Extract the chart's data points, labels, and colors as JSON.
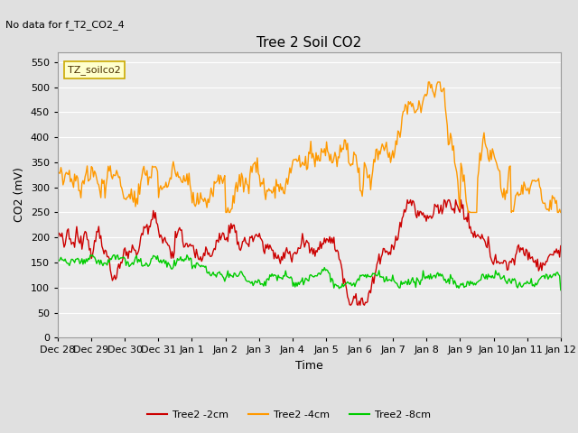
{
  "title": "Tree 2 Soil CO2",
  "top_left_note": "No data for f_T2_CO2_4",
  "xlabel": "Time",
  "ylabel": "CO2 (mV)",
  "ylim": [
    0,
    570
  ],
  "yticks": [
    0,
    50,
    100,
    150,
    200,
    250,
    300,
    350,
    400,
    450,
    500,
    550
  ],
  "xtick_labels": [
    "Dec 28",
    "Dec 29",
    "Dec 30",
    "Dec 31",
    "Jan 1",
    "Jan 2",
    "Jan 3",
    "Jan 4",
    "Jan 5",
    "Jan 6",
    "Jan 7",
    "Jan 8",
    "Jan 9",
    "Jan 10",
    "Jan 11",
    "Jan 12"
  ],
  "num_points": 480,
  "legend_entries": [
    "Tree2 -2cm",
    "Tree2 -4cm",
    "Tree2 -8cm"
  ],
  "line_colors": [
    "#cc0000",
    "#ff9900",
    "#00cc00"
  ],
  "background_color": "#e0e0e0",
  "plot_bg_color": "#ebebeb",
  "grid_color": "#ffffff",
  "title_fontsize": 11,
  "label_fontsize": 9,
  "tick_fontsize": 8,
  "note_fontsize": 8,
  "annot_fontsize": 8,
  "legend_fontsize": 8
}
